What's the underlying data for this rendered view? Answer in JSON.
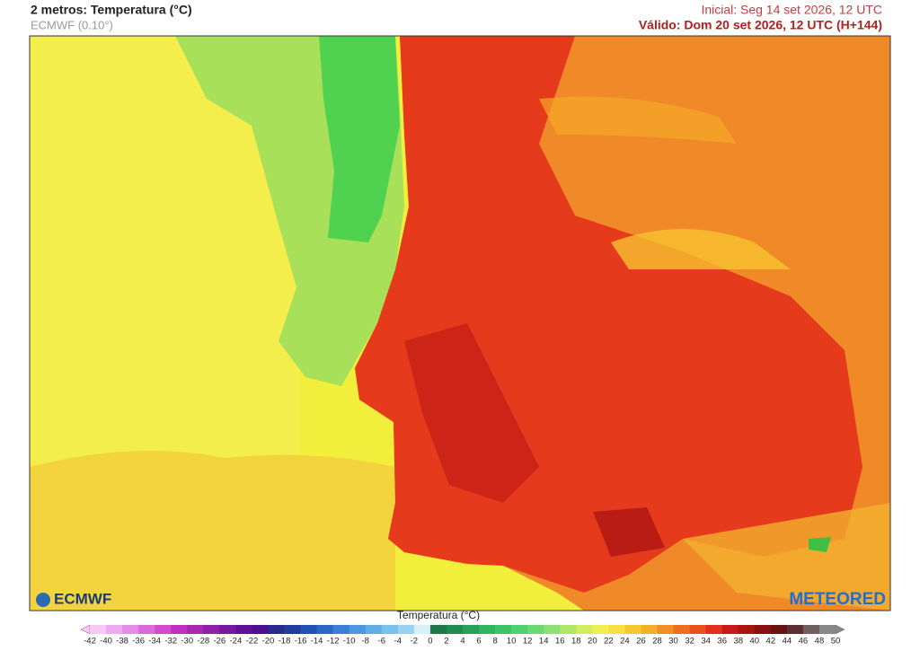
{
  "header": {
    "title": "2 metros: Temperatura (°C)",
    "subtitle": "ECMWF (0.10°)",
    "initial": "Inicial: Seg 14 set 2026, 12 UTC",
    "valid": "Válido: Dom 20 set 2026, 12 UTC (H+144)"
  },
  "logos": {
    "left": "ECMWF",
    "right": "METEORED"
  },
  "legend": {
    "title": "Temperatura (°C)",
    "ticks": [
      -42,
      -40,
      -38,
      -36,
      -34,
      -32,
      -30,
      -28,
      -26,
      -24,
      -22,
      -20,
      -18,
      -16,
      -14,
      -12,
      -10,
      -8,
      -6,
      -4,
      -2,
      0,
      2,
      4,
      6,
      8,
      10,
      12,
      14,
      16,
      18,
      20,
      22,
      24,
      26,
      28,
      30,
      32,
      34,
      36,
      38,
      40,
      42,
      44,
      46,
      48,
      50
    ],
    "colors": [
      "#f5c8f5",
      "#eeaaee",
      "#e68ae6",
      "#dd6add",
      "#d24ad2",
      "#c030c0",
      "#a828b0",
      "#9020a8",
      "#7818a0",
      "#601098",
      "#4a1090",
      "#2a2a8c",
      "#203c9c",
      "#2050b0",
      "#2a66c4",
      "#3a80d4",
      "#4c98e0",
      "#60aee8",
      "#78c2ee",
      "#96d4f2",
      "#d8f0fa",
      "#1a7a4a",
      "#208c50",
      "#28a058",
      "#30b460",
      "#3cc468",
      "#50d070",
      "#6cd870",
      "#8ee070",
      "#b0e668",
      "#d4ec60",
      "#eef050",
      "#f8e040",
      "#f8c830",
      "#f4ae28",
      "#f09024",
      "#ec7020",
      "#e8501c",
      "#e0301a",
      "#c81818",
      "#a81414",
      "#881010",
      "#6a1010",
      "#5a3030",
      "#706060",
      "#888888"
    ]
  }
}
